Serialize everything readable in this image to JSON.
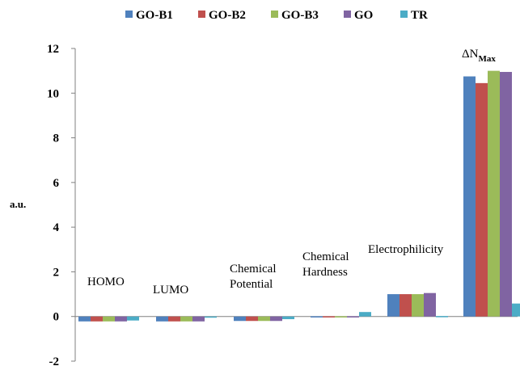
{
  "chart_data": {
    "type": "bar",
    "ylabel": "a.u.",
    "ylim": [
      -2,
      12
    ],
    "yticks": [
      "-2",
      "0",
      "2",
      "4",
      "6",
      "8",
      "10",
      "12"
    ],
    "legend_position": "top",
    "categories": [
      "HOMO",
      "LUMO",
      "Chemical Potential",
      "Chemical Hardness",
      "Electrophilicity",
      "ΔN Max"
    ],
    "category_labels": [
      {
        "lines": [
          "HOMO"
        ],
        "sub": ""
      },
      {
        "lines": [
          "LUMO"
        ],
        "sub": ""
      },
      {
        "lines": [
          "Chemical",
          "Potential"
        ],
        "sub": ""
      },
      {
        "lines": [
          "Chemical",
          "Hardness"
        ],
        "sub": ""
      },
      {
        "lines": [
          "Electrophilicity"
        ],
        "sub": ""
      },
      {
        "lines": [
          "ΔN"
        ],
        "sub": "Max"
      }
    ],
    "series": [
      {
        "name": "GO-B1",
        "color": "#4F81BD",
        "values": [
          -0.22,
          -0.22,
          -0.2,
          0.01,
          1.0,
          10.75
        ]
      },
      {
        "name": "GO-B2",
        "color": "#C0504D",
        "values": [
          -0.22,
          -0.22,
          -0.2,
          0.01,
          1.0,
          10.45
        ]
      },
      {
        "name": "GO-B3",
        "color": "#9BBB59",
        "values": [
          -0.22,
          -0.22,
          -0.2,
          0.01,
          1.0,
          11.0
        ]
      },
      {
        "name": "GO",
        "color": "#8064A2",
        "values": [
          -0.22,
          -0.22,
          -0.2,
          0.01,
          1.05,
          10.95
        ]
      },
      {
        "name": "TR",
        "color": "#4BACC6",
        "values": [
          -0.18,
          0.0,
          -0.12,
          0.2,
          0.02,
          0.58
        ]
      }
    ]
  }
}
